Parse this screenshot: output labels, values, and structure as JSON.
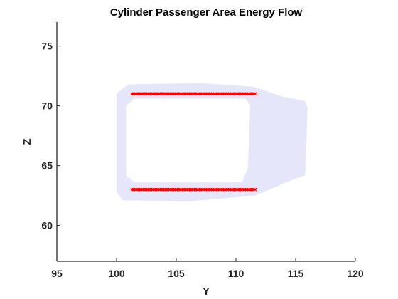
{
  "chart_data": {
    "type": "scatter",
    "title": "Cylinder Passenger Area Energy Flow",
    "xlabel": "Y",
    "ylabel": "Z",
    "xlim": [
      95,
      120
    ],
    "ylim": [
      57,
      77
    ],
    "xticks": [
      "95",
      "100",
      "105",
      "110",
      "115",
      "120"
    ],
    "yticks": [
      "60",
      "65",
      "70",
      "75"
    ],
    "grid": false,
    "legend": "none",
    "series": [
      {
        "color": "#e6e6fa",
        "style": "filled band (energy flow traces)",
        "outline": [
          [
            100.0,
            71.0
          ],
          [
            101.0,
            71.8
          ],
          [
            107.0,
            71.9
          ],
          [
            111.5,
            71.6
          ],
          [
            113.8,
            70.8
          ],
          [
            115.8,
            70.4
          ],
          [
            116.0,
            69.8
          ],
          [
            115.8,
            64.2
          ],
          [
            114.2,
            63.6
          ],
          [
            111.6,
            62.5
          ],
          [
            106.0,
            62.0
          ],
          [
            100.5,
            62.1
          ],
          [
            100.0,
            62.8
          ]
        ],
        "hole": [
          [
            101.5,
            70.6
          ],
          [
            110.8,
            70.6
          ],
          [
            111.2,
            70.0
          ],
          [
            111.0,
            64.8
          ],
          [
            110.5,
            63.6
          ],
          [
            101.5,
            63.6
          ],
          [
            100.8,
            64.2
          ],
          [
            100.8,
            70.0
          ]
        ]
      },
      {
        "color": "#ff0000",
        "style": "markers",
        "segments": [
          {
            "x_start": 101.3,
            "x_end": 111.6,
            "y": 71.0
          },
          {
            "x_start": 101.3,
            "x_end": 111.6,
            "y": 63.0
          }
        ]
      }
    ]
  }
}
